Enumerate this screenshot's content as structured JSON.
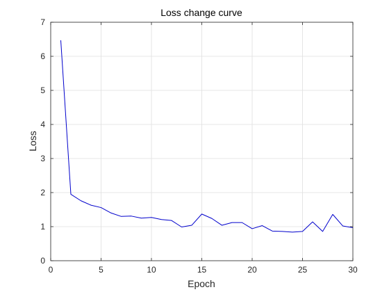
{
  "chart_data": {
    "type": "line",
    "title": "Loss change curve",
    "xlabel": "Epoch",
    "ylabel": "Loss",
    "xlim": [
      0,
      30
    ],
    "ylim": [
      0,
      7
    ],
    "xticks": [
      "0",
      "5",
      "10",
      "15",
      "20",
      "25",
      "30"
    ],
    "yticks": [
      "0",
      "1",
      "2",
      "3",
      "4",
      "5",
      "6",
      "7"
    ],
    "grid": true,
    "series": [
      {
        "color": "#0000cc",
        "x": [
          1,
          2,
          3,
          4,
          5,
          6,
          7,
          8,
          9,
          10,
          11,
          12,
          13,
          14,
          15,
          16,
          17,
          18,
          19,
          20,
          21,
          22,
          23,
          24,
          25,
          26,
          27,
          28,
          29,
          30
        ],
        "y": [
          6.47,
          1.95,
          1.76,
          1.63,
          1.56,
          1.4,
          1.3,
          1.31,
          1.25,
          1.27,
          1.21,
          1.18,
          0.99,
          1.04,
          1.37,
          1.24,
          1.04,
          1.12,
          1.12,
          0.94,
          1.03,
          0.87,
          0.86,
          0.84,
          0.86,
          1.14,
          0.86,
          1.36,
          1.02,
          0.97
        ]
      }
    ]
  }
}
